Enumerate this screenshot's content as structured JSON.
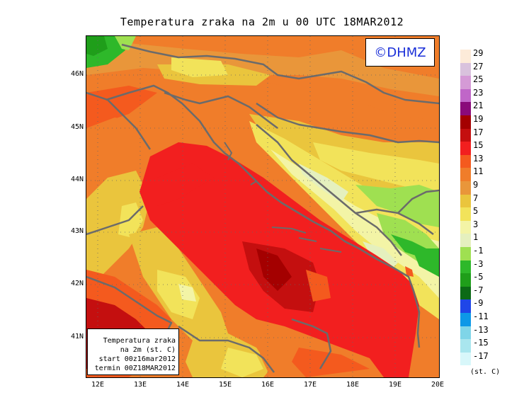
{
  "title": "Temperatura zraka na 2m u 00 UTC 18MAR2012",
  "logo": "©DHMZ",
  "info_box": {
    "line1": "Temperatura zraka",
    "line2": "na 2m (st. C)",
    "line3": "start 00z16mar2012",
    "line4": "termin 00Z18MAR2012"
  },
  "lat_labels": [
    "46N",
    "45N",
    "44N",
    "43N",
    "42N",
    "41N"
  ],
  "lon_labels": [
    "12E",
    "13E",
    "14E",
    "15E",
    "16E",
    "17E",
    "18E",
    "19E",
    "20E"
  ],
  "legend": {
    "unit": "(st. C)",
    "colors": [
      "#fdebd9",
      "#d9c2dd",
      "#d59ad6",
      "#c066c8",
      "#8a0a7a",
      "#a40000",
      "#c40f0f",
      "#f21f1f",
      "#f45a1e",
      "#f07d2a",
      "#e9963a",
      "#eac53d",
      "#f2e35a",
      "#f3f4a6",
      "#e5f0be",
      "#9fe051",
      "#2eb82a",
      "#1f9e1a",
      "#0c6a16",
      "#1f46e8",
      "#0d98e7",
      "#7fd5e8",
      "#a9e6ee",
      "#d8f7fa"
    ],
    "labels": [
      "29",
      "27",
      "25",
      "23",
      "21",
      "19",
      "17",
      "15",
      "13",
      "11",
      "9",
      "7",
      "5",
      "3",
      "1",
      "-1",
      "-3",
      "-5",
      "-7",
      "-9",
      "-11",
      "-13",
      "-15",
      "-17"
    ]
  }
}
